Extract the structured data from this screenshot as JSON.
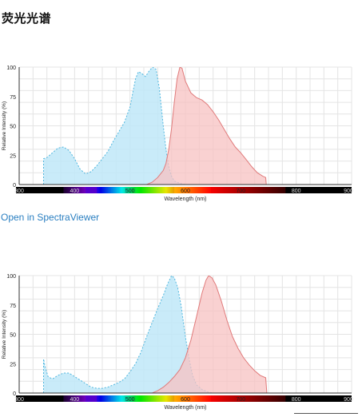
{
  "page": {
    "title": "荧光光谱",
    "link_text": "Open in SpectraViewer"
  },
  "colors": {
    "excitation_fill": "#bfe8f8",
    "excitation_stroke": "#4fb6de",
    "emission_fill": "#f7c1c1",
    "emission_stroke": "#e07a7a",
    "overlap_fill": "#c9bcc6",
    "grid": "#e4e4e4",
    "axis": "#333333"
  },
  "chart_data": [
    {
      "type": "area",
      "xlabel": "Wavelength (nm)",
      "ylabel": "Relative Intensity (%)",
      "xlim": [
        300,
        900
      ],
      "ylim": [
        0,
        100
      ],
      "x_ticks": [
        300,
        400,
        500,
        600,
        700,
        800,
        900
      ],
      "y_ticks": [
        0,
        25,
        50,
        75,
        100
      ],
      "grid": true,
      "series": [
        {
          "kind": "excitation",
          "points": [
            [
              344,
              22
            ],
            [
              350,
              23
            ],
            [
              360,
              27
            ],
            [
              370,
              31
            ],
            [
              380,
              32
            ],
            [
              390,
              29
            ],
            [
              400,
              22
            ],
            [
              410,
              13
            ],
            [
              420,
              9
            ],
            [
              430,
              11
            ],
            [
              440,
              16
            ],
            [
              450,
              22
            ],
            [
              460,
              28
            ],
            [
              470,
              37
            ],
            [
              480,
              45
            ],
            [
              490,
              53
            ],
            [
              500,
              66
            ],
            [
              505,
              78
            ],
            [
              510,
              90
            ],
            [
              515,
              96
            ],
            [
              520,
              95
            ],
            [
              528,
              92
            ],
            [
              535,
              97
            ],
            [
              541,
              100
            ],
            [
              547,
              98
            ],
            [
              553,
              82
            ],
            [
              560,
              50
            ],
            [
              565,
              30
            ],
            [
              570,
              15
            ],
            [
              575,
              7
            ],
            [
              580,
              3
            ],
            [
              590,
              1
            ],
            [
              600,
              0
            ]
          ]
        },
        {
          "kind": "emission",
          "points": [
            [
              530,
              0
            ],
            [
              540,
              2
            ],
            [
              550,
              6
            ],
            [
              560,
              12
            ],
            [
              565,
              18
            ],
            [
              570,
              30
            ],
            [
              575,
              48
            ],
            [
              580,
              70
            ],
            [
              585,
              90
            ],
            [
              590,
              100
            ],
            [
              594,
              99
            ],
            [
              600,
              88
            ],
            [
              610,
              78
            ],
            [
              620,
              74
            ],
            [
              630,
              72
            ],
            [
              640,
              68
            ],
            [
              650,
              62
            ],
            [
              660,
              55
            ],
            [
              670,
              47
            ],
            [
              680,
              39
            ],
            [
              690,
              32
            ],
            [
              700,
              27
            ],
            [
              710,
              21
            ],
            [
              720,
              15
            ],
            [
              730,
              10
            ],
            [
              740,
              7
            ],
            [
              745,
              6
            ],
            [
              746,
              0
            ]
          ]
        }
      ]
    },
    {
      "type": "area",
      "xlabel": "Wavelength (nm)",
      "ylabel": "Relative Intensity (%)",
      "xlim": [
        300,
        900
      ],
      "ylim": [
        0,
        100
      ],
      "x_ticks": [
        300,
        400,
        500,
        600,
        700,
        800,
        900
      ],
      "y_ticks": [
        0,
        25,
        50,
        75,
        100
      ],
      "grid": true,
      "series": [
        {
          "kind": "excitation",
          "points": [
            [
              344,
              29
            ],
            [
              347,
              22
            ],
            [
              352,
              14
            ],
            [
              360,
              12
            ],
            [
              370,
              15
            ],
            [
              380,
              17
            ],
            [
              390,
              17
            ],
            [
              400,
              14
            ],
            [
              410,
              11
            ],
            [
              420,
              8
            ],
            [
              430,
              5
            ],
            [
              440,
              4
            ],
            [
              450,
              4
            ],
            [
              460,
              5
            ],
            [
              470,
              7
            ],
            [
              480,
              9
            ],
            [
              490,
              12
            ],
            [
              500,
              18
            ],
            [
              510,
              25
            ],
            [
              520,
              35
            ],
            [
              530,
              48
            ],
            [
              540,
              60
            ],
            [
              550,
              72
            ],
            [
              560,
              83
            ],
            [
              568,
              93
            ],
            [
              575,
              100
            ],
            [
              580,
              98
            ],
            [
              586,
              90
            ],
            [
              592,
              75
            ],
            [
              600,
              48
            ],
            [
              607,
              28
            ],
            [
              613,
              15
            ],
            [
              620,
              7
            ],
            [
              630,
              3
            ],
            [
              640,
              1
            ],
            [
              650,
              0
            ]
          ]
        },
        {
          "kind": "emission",
          "points": [
            [
              540,
              0
            ],
            [
              550,
              2
            ],
            [
              560,
              5
            ],
            [
              570,
              9
            ],
            [
              580,
              14
            ],
            [
              590,
              20
            ],
            [
              600,
              30
            ],
            [
              610,
              45
            ],
            [
              620,
              65
            ],
            [
              630,
              85
            ],
            [
              637,
              96
            ],
            [
              642,
              100
            ],
            [
              648,
              98
            ],
            [
              655,
              92
            ],
            [
              665,
              78
            ],
            [
              675,
              62
            ],
            [
              685,
              48
            ],
            [
              695,
              38
            ],
            [
              705,
              30
            ],
            [
              715,
              24
            ],
            [
              725,
              19
            ],
            [
              735,
              15
            ],
            [
              745,
              13
            ],
            [
              747,
              0
            ]
          ]
        }
      ]
    }
  ]
}
